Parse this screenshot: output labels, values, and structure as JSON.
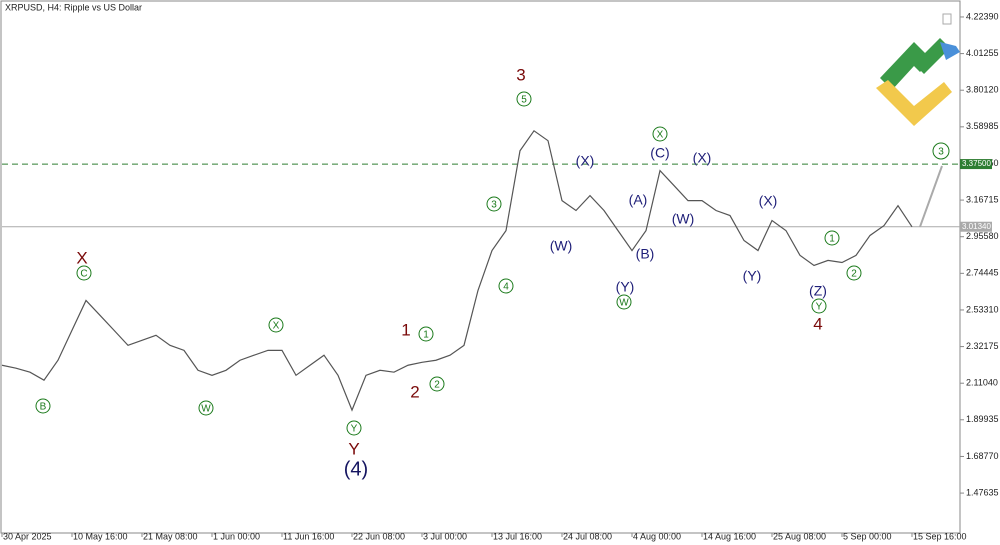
{
  "chart_data": {
    "type": "line",
    "title": "XRPUSD, H4:  Ripple vs US Dollar",
    "categories": [
      "30 Apr 2025",
      null,
      null,
      null,
      null,
      "10 May 16:00",
      null,
      null,
      null,
      null,
      "21 May 08:00",
      null,
      null,
      null,
      null,
      "1 Jun 00:00",
      null,
      null,
      null,
      null,
      "11 Jun 16:00",
      null,
      null,
      null,
      null,
      "22 Jun 08:00",
      null,
      null,
      null,
      null,
      "3 Jul 00:00",
      null,
      null,
      null,
      null,
      "13 Jul 16:00",
      null,
      null,
      null,
      null,
      "24 Jul 08:00",
      null,
      null,
      null,
      null,
      "4 Aug 00:00",
      null,
      null,
      null,
      null,
      "14 Aug 16:00",
      null,
      null,
      null,
      null,
      "25 Aug 08:00",
      null,
      null,
      null,
      null,
      "5 Sep 00:00",
      null,
      null,
      null,
      null,
      "15 Sep 16:00"
    ],
    "values": [
      2.214,
      2.197,
      2.174,
      2.128,
      2.243,
      2.416,
      2.588,
      2.502,
      2.416,
      2.329,
      2.358,
      2.387,
      2.329,
      2.3,
      2.185,
      2.156,
      2.185,
      2.243,
      2.272,
      2.3,
      2.3,
      2.156,
      2.214,
      2.272,
      2.156,
      1.955,
      2.156,
      2.185,
      2.174,
      2.214,
      2.231,
      2.243,
      2.272,
      2.329,
      2.646,
      2.876,
      2.991,
      3.452,
      3.567,
      3.51,
      3.164,
      3.107,
      3.193,
      3.107,
      2.991,
      2.876,
      2.991,
      3.337,
      3.251,
      3.164,
      3.164,
      3.107,
      3.078,
      2.934,
      2.876,
      3.049,
      2.991,
      2.848,
      2.79,
      2.819,
      2.807,
      2.848,
      2.963,
      3.02,
      3.135,
      3.013
    ],
    "color": "#555555",
    "ylim": [
      1.246,
      4.316
    ],
    "yticks": [
      {
        "value": 1.47635,
        "label": "1.47635"
      },
      {
        "value": 1.6877,
        "label": "1.68770"
      },
      {
        "value": 1.89935,
        "label": "1.89935"
      },
      {
        "value": 2.1104,
        "label": "2.11040"
      },
      {
        "value": 2.32175,
        "label": "2.32175"
      },
      {
        "value": 2.5331,
        "label": "2.53310"
      },
      {
        "value": 2.74445,
        "label": "2.74445"
      },
      {
        "value": 2.9558,
        "label": "2.95580"
      },
      {
        "value": 3.16715,
        "label": "3.16715"
      },
      {
        "value": 3.3785,
        "label": "3.37850"
      },
      {
        "value": 3.58985,
        "label": "3.58985"
      },
      {
        "value": 3.8012,
        "label": "3.80120"
      },
      {
        "value": 4.01255,
        "label": "4.01255"
      },
      {
        "value": 4.2239,
        "label": "4.22390"
      }
    ],
    "levels": [
      {
        "value": 3.375,
        "label": "3.37500",
        "color": "#2e7d32"
      },
      {
        "value": 3.0134,
        "label": "3.01340",
        "color": "#aaaaaa"
      }
    ],
    "annotations": [
      "X",
      "C",
      "B",
      "W",
      "X",
      "Y",
      "Y",
      "(4)",
      "1",
      "1",
      "2",
      "2",
      "3",
      "5",
      "3",
      "4",
      "(W)",
      "(X)",
      "(Y)",
      "W",
      "(A)",
      "(B)",
      "X",
      "(C)",
      "(W)",
      "(X)",
      "(X)",
      "(Y)",
      "(Z)",
      "Y",
      "4",
      "1",
      "2",
      "3"
    ]
  }
}
